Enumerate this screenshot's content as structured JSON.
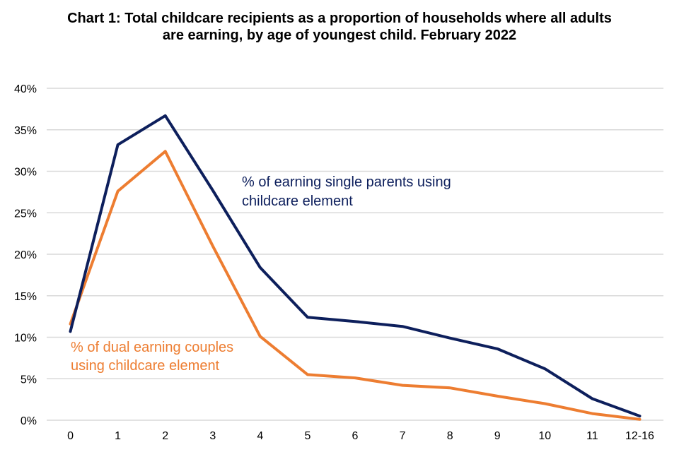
{
  "chart_data": {
    "type": "line",
    "title": "Chart 1: Total childcare recipients as a proportion of households where all adults are earning, by age of youngest child. February 2022",
    "xlabel": "",
    "ylabel": "",
    "categories": [
      "0",
      "1",
      "2",
      "3",
      "4",
      "5",
      "6",
      "7",
      "8",
      "9",
      "10",
      "11",
      "12-16"
    ],
    "yticks": [
      "0%",
      "5%",
      "10%",
      "15%",
      "20%",
      "25%",
      "30%",
      "35%",
      "40%"
    ],
    "ylim": [
      0,
      40
    ],
    "grid": true,
    "legend": "inline annotations",
    "series": [
      {
        "name": "% of earning single parents using childcare element",
        "label_lines": [
          "% of earning single parents using",
          "childcare element"
        ],
        "color": "#0d1f5c",
        "values": [
          10.7,
          33.2,
          36.7,
          27.7,
          18.4,
          12.4,
          11.9,
          11.3,
          9.9,
          8.6,
          6.2,
          2.6,
          0.5
        ]
      },
      {
        "name": "% of dual earning couples using childcare element",
        "label_lines": [
          "% of dual earning couples",
          "using childcare element"
        ],
        "color": "#ed7d31",
        "values": [
          11.6,
          27.6,
          32.4,
          21.0,
          10.1,
          5.5,
          5.1,
          4.2,
          3.9,
          2.9,
          2.0,
          0.8,
          0.1
        ]
      }
    ]
  }
}
